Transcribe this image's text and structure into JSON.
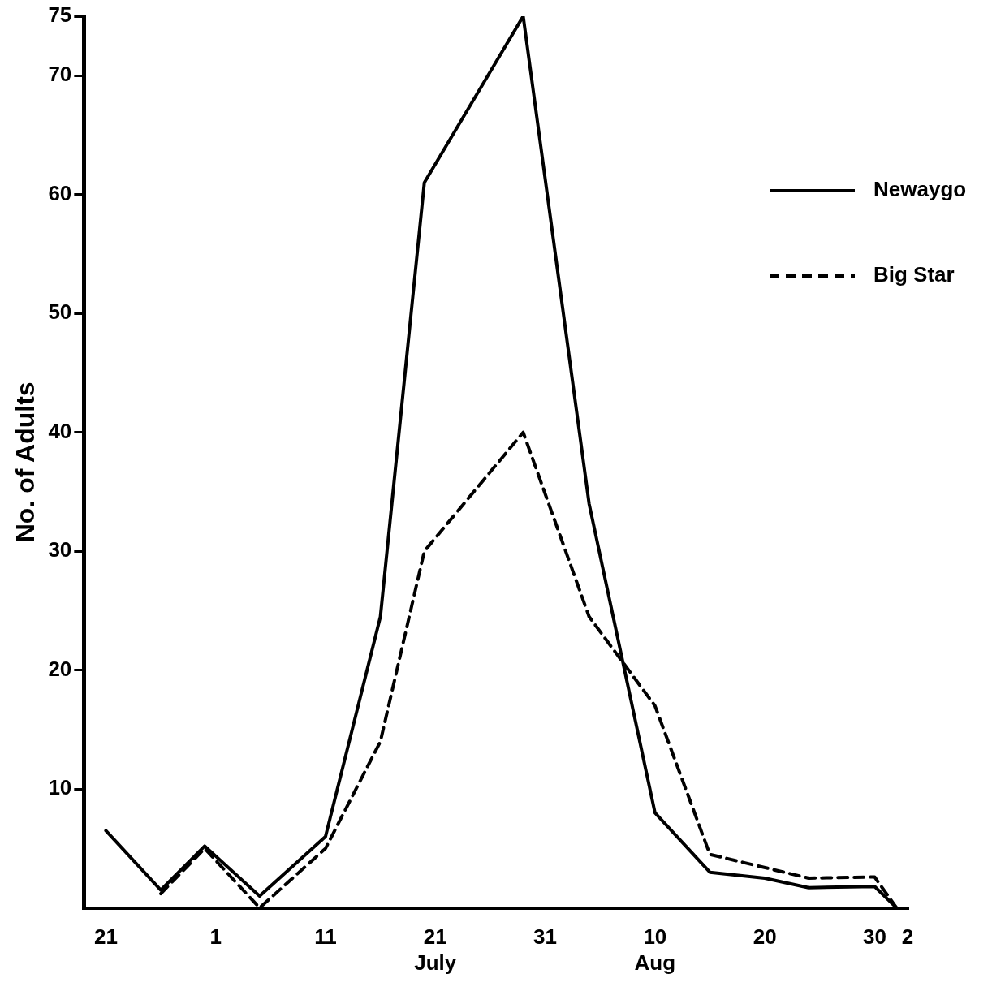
{
  "chart_data": {
    "type": "line",
    "ylabel": "No. of Adults",
    "xlim": [
      "--06-19",
      "--09-02"
    ],
    "xticks": [
      {
        "value": "--06-21",
        "label": "21"
      },
      {
        "value": "--07-01",
        "label": "1"
      },
      {
        "value": "--07-11",
        "label": "11"
      },
      {
        "value": "--07-21",
        "label": "21\nJuly"
      },
      {
        "value": "--07-31",
        "label": "31"
      },
      {
        "value": "--08-10",
        "label": "10\nAug"
      },
      {
        "value": "--08-20",
        "label": "20"
      },
      {
        "value": "--08-30",
        "label": "30"
      },
      {
        "value": "--09-02",
        "label": "2"
      }
    ],
    "ylim": [
      0,
      75
    ],
    "yticks": [
      10,
      20,
      30,
      40,
      50,
      60,
      70,
      75
    ],
    "grid": false,
    "legend": "top right",
    "marker": "none",
    "series": [
      {
        "name": "Newaygo",
        "color": "#000000",
        "line_style": "solid",
        "x": [
          "--06-21",
          "--06-26",
          "--06-30",
          "--07-05",
          "--07-11",
          "--07-16",
          "--07-20",
          "--07-29",
          "--08-04",
          "--08-10",
          "--08-15",
          "--08-20",
          "--08-24",
          "--08-30",
          "--09-01"
        ],
        "values": [
          6.5,
          1.5,
          5.2,
          1,
          6,
          24.5,
          61,
          75,
          34,
          8,
          3,
          2.5,
          1.7,
          1.8,
          0
        ]
      },
      {
        "name": "Big Star",
        "color": "#000000",
        "line_style": "dashed",
        "x": [
          "--06-26",
          "--06-30",
          "--07-05",
          "--07-11",
          "--07-16",
          "--07-20",
          "--07-29",
          "--08-04",
          "--08-10",
          "--08-15",
          "--08-24",
          "--08-30",
          "--09-01"
        ],
        "values": [
          1.2,
          5,
          0,
          5,
          14,
          30,
          40,
          24.5,
          17,
          4.5,
          2.5,
          2.6,
          0
        ]
      }
    ]
  }
}
